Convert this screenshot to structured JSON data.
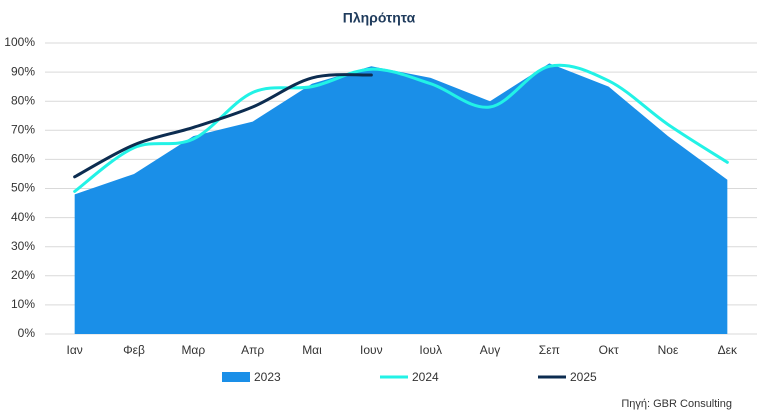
{
  "chart_data": {
    "type": "area-line",
    "title": "Πληρότητα",
    "categories": [
      "Ιαν",
      "Φεβ",
      "Μαρ",
      "Απρ",
      "Μαι",
      "Ιουν",
      "Ιουλ",
      "Αυγ",
      "Σεπ",
      "Οκτ",
      "Νοε",
      "Δεκ"
    ],
    "series": [
      {
        "name": "2023",
        "color": "#1a8fe8",
        "kind": "area",
        "values": [
          48,
          55,
          68,
          73,
          86,
          92,
          88,
          80,
          93,
          85,
          68,
          53
        ]
      },
      {
        "name": "2024",
        "color": "#22f2e6",
        "kind": "line",
        "values": [
          49,
          64,
          67,
          83,
          85,
          91,
          86,
          78,
          92,
          87,
          72,
          59
        ]
      },
      {
        "name": "2025",
        "color": "#0c2c50",
        "kind": "line",
        "values": [
          54,
          65,
          71,
          78,
          88,
          89,
          null,
          null,
          null,
          null,
          null,
          null
        ]
      }
    ],
    "ylim": [
      0,
      100
    ],
    "yticks": [
      {
        "value": 0,
        "label": "0%"
      },
      {
        "value": 10,
        "label": "10%"
      },
      {
        "value": 20,
        "label": "20%"
      },
      {
        "value": 30,
        "label": "30%"
      },
      {
        "value": 40,
        "label": "40%"
      },
      {
        "value": 50,
        "label": "50%"
      },
      {
        "value": 60,
        "label": "60%"
      },
      {
        "value": 70,
        "label": "70%"
      },
      {
        "value": 80,
        "label": "80%"
      },
      {
        "value": 90,
        "label": "90%"
      },
      {
        "value": 100,
        "label": "100%"
      }
    ],
    "grid": true,
    "legend": "bottom",
    "source": "Πηγή: GBR Consulting"
  }
}
